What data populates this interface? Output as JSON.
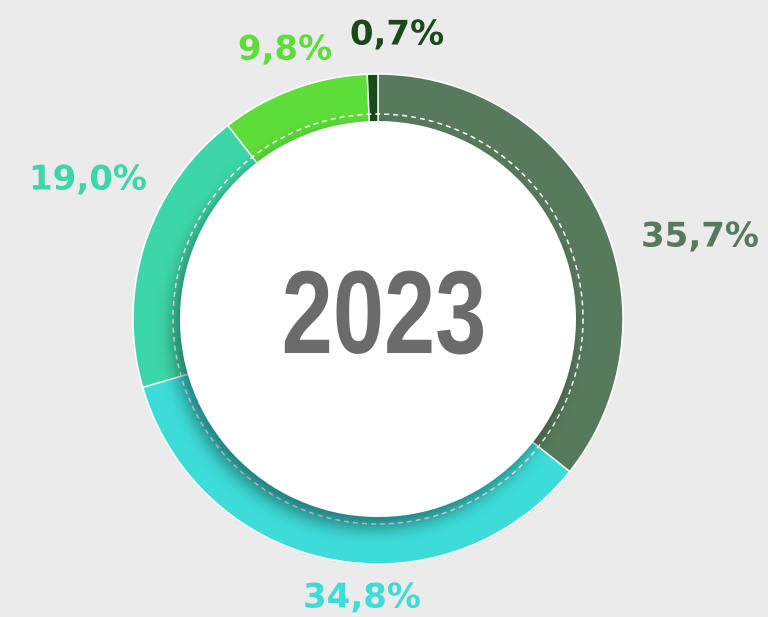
{
  "chart_data": {
    "type": "donut",
    "title": "2023",
    "values": [
      35.7,
      34.8,
      19.0,
      9.8,
      0.7
    ],
    "value_labels": [
      "35,7%",
      "34,8%",
      "19,0%",
      "9,8%",
      "0,7%"
    ],
    "colors": [
      "#587a5c",
      "#3ddcd8",
      "#3dd6a8",
      "#5ddd3a",
      "#1a4a1a"
    ]
  }
}
